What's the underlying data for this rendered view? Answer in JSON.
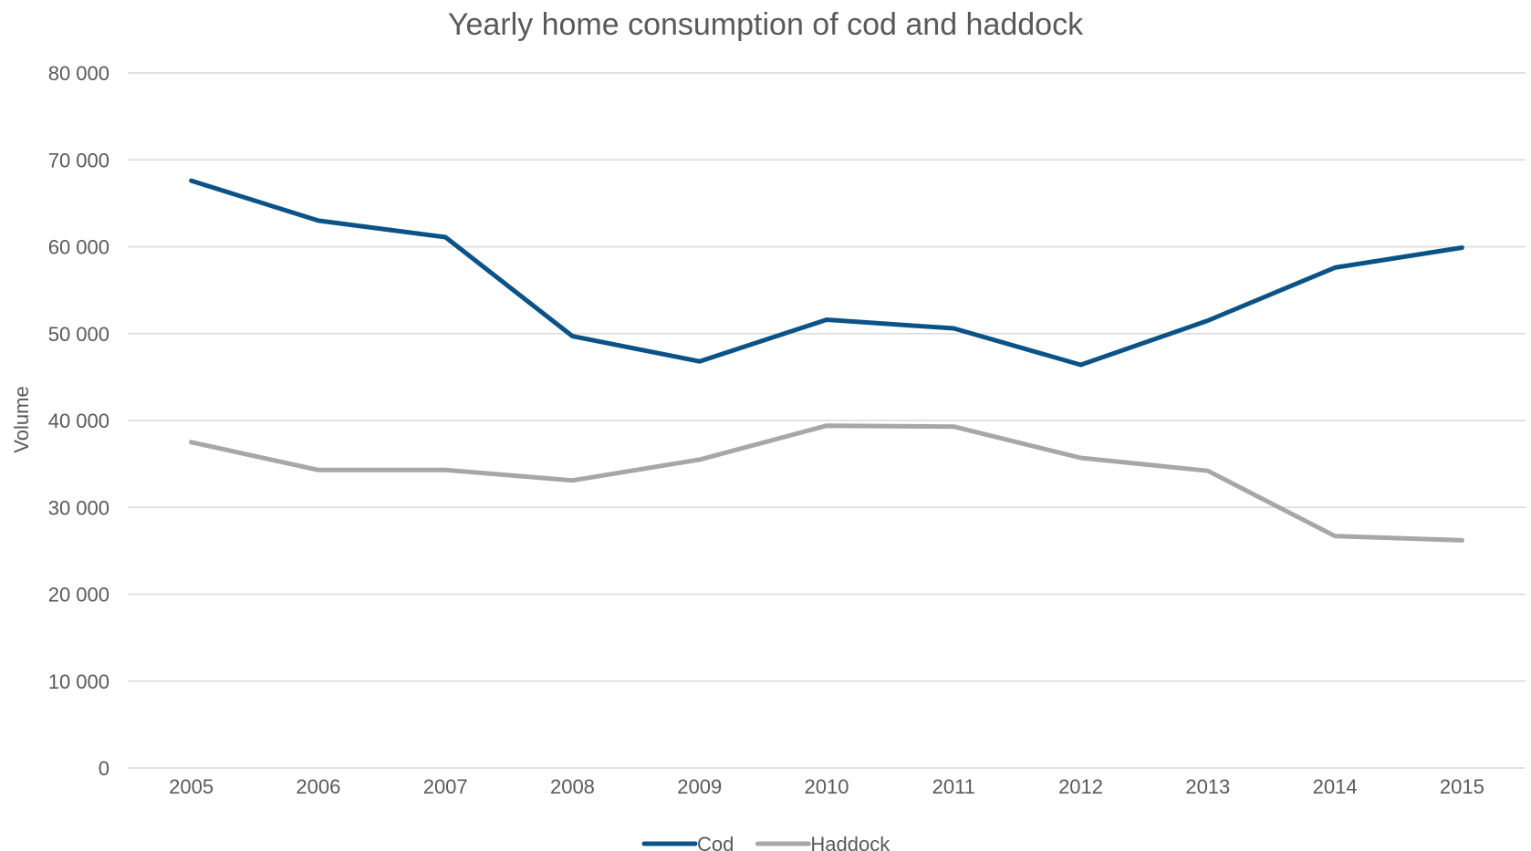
{
  "chart_data": {
    "type": "line",
    "title": "Yearly home consumption of cod and haddock",
    "xlabel": "",
    "ylabel": "Volume",
    "ylim": [
      0,
      80000
    ],
    "ytick_step": 10000,
    "ytick_labels": [
      "0",
      "10 000",
      "20 000",
      "30 000",
      "40 000",
      "50 000",
      "60 000",
      "70 000",
      "80 000"
    ],
    "categories": [
      "2005",
      "2006",
      "2007",
      "2008",
      "2009",
      "2010",
      "2011",
      "2012",
      "2013",
      "2014",
      "2015"
    ],
    "series": [
      {
        "name": "Cod",
        "color": "#0b5386",
        "values": [
          67600,
          63000,
          61100,
          49700,
          46800,
          51600,
          50600,
          46400,
          51500,
          57600,
          59900
        ]
      },
      {
        "name": "Haddock",
        "color": "#a6a6ab",
        "values": [
          37500,
          34300,
          34300,
          33100,
          35500,
          39400,
          39300,
          35700,
          34200,
          26700,
          26200
        ]
      }
    ],
    "grid": true,
    "legend": "bottom"
  }
}
